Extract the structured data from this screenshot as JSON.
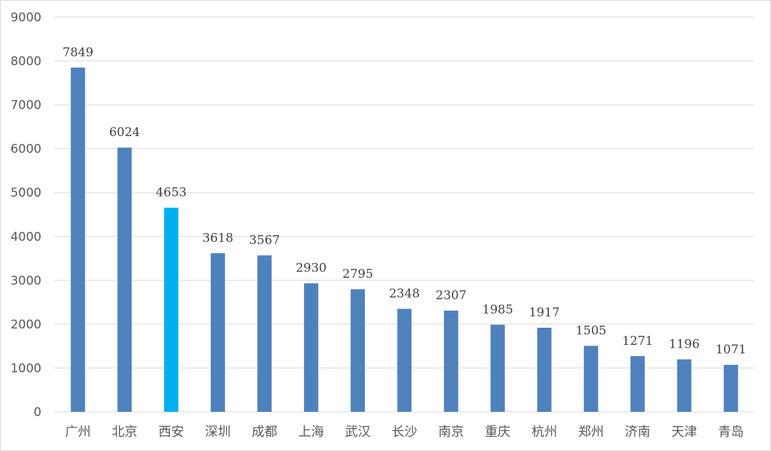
{
  "chart_data": {
    "type": "bar",
    "categories": [
      "广州",
      "北京",
      "西安",
      "深圳",
      "成都",
      "上海",
      "武汉",
      "长沙",
      "南京",
      "重庆",
      "杭州",
      "郑州",
      "济南",
      "天津",
      "青岛"
    ],
    "values": [
      7849,
      6024,
      4653,
      3618,
      3567,
      2930,
      2795,
      2348,
      2307,
      1985,
      1917,
      1505,
      1271,
      1196,
      1071
    ],
    "highlight_index": 2,
    "colors": {
      "bar": "#4f81bd",
      "highlight": "#00b0f0",
      "grid": "#d9d9d9",
      "text": "#595959"
    },
    "ylim": [
      0,
      9000
    ],
    "yticks": [
      0,
      1000,
      2000,
      3000,
      4000,
      5000,
      6000,
      7000,
      8000,
      9000
    ],
    "grid": true,
    "title": "",
    "xlabel": "",
    "ylabel": ""
  }
}
